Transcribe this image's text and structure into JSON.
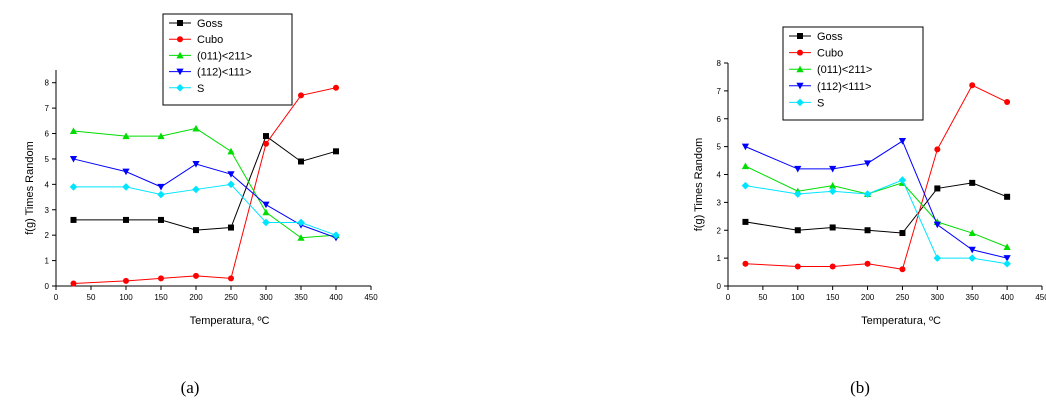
{
  "chart_data": [
    {
      "type": "line",
      "caption": "(a)",
      "xlabel": "Temperatura, ºC",
      "ylabel": "f(g) Times Random",
      "xlim": [
        0,
        450
      ],
      "ylim": [
        0,
        8.5
      ],
      "xticks": [
        0,
        50,
        100,
        150,
        200,
        250,
        300,
        350,
        400,
        450
      ],
      "yticks": [
        0,
        1,
        2,
        3,
        4,
        5,
        6,
        7,
        8
      ],
      "grid": false,
      "legend": "top-left",
      "x": [
        25,
        100,
        150,
        200,
        250,
        300,
        350,
        400
      ],
      "series": [
        {
          "name": "Goss",
          "color": "#000000",
          "marker": "square",
          "values": [
            2.6,
            2.6,
            2.6,
            2.2,
            2.3,
            5.9,
            4.9,
            5.3
          ]
        },
        {
          "name": "Cubo",
          "color": "#ff0000",
          "marker": "circle",
          "values": [
            0.1,
            0.2,
            0.3,
            0.4,
            0.3,
            5.6,
            7.5,
            7.8
          ]
        },
        {
          "name": "(011)<211>",
          "color": "#00dd00",
          "marker": "triangle-up",
          "values": [
            6.1,
            5.9,
            5.9,
            6.2,
            5.3,
            2.9,
            1.9,
            2.0
          ]
        },
        {
          "name": "(112)<111>",
          "color": "#0000ff",
          "marker": "triangle-down",
          "values": [
            5.0,
            4.5,
            3.9,
            4.8,
            4.4,
            3.2,
            2.4,
            1.9
          ]
        },
        {
          "name": "S",
          "color": "#00e5ff",
          "marker": "diamond",
          "values": [
            3.9,
            3.9,
            3.6,
            3.8,
            4.0,
            2.5,
            2.5,
            2.0
          ]
        }
      ]
    },
    {
      "type": "line",
      "caption": "(b)",
      "xlabel": "Temperatura, ºC",
      "ylabel": "f(g) Times Random",
      "xlim": [
        0,
        450
      ],
      "ylim": [
        0,
        8
      ],
      "xticks": [
        0,
        50,
        100,
        150,
        200,
        250,
        300,
        350,
        400,
        450
      ],
      "yticks": [
        0,
        1,
        2,
        3,
        4,
        5,
        6,
        7,
        8
      ],
      "grid": false,
      "legend": "top-left",
      "x": [
        25,
        100,
        150,
        200,
        250,
        300,
        350,
        400
      ],
      "series": [
        {
          "name": "Goss",
          "color": "#000000",
          "marker": "square",
          "values": [
            2.3,
            2.0,
            2.1,
            2.0,
            1.9,
            3.5,
            3.7,
            3.2
          ]
        },
        {
          "name": "Cubo",
          "color": "#ff0000",
          "marker": "circle",
          "values": [
            0.8,
            0.7,
            0.7,
            0.8,
            0.6,
            4.9,
            7.2,
            6.6
          ]
        },
        {
          "name": "(011)<211>",
          "color": "#00dd00",
          "marker": "triangle-up",
          "values": [
            4.3,
            3.4,
            3.6,
            3.3,
            3.7,
            2.3,
            1.9,
            1.4
          ]
        },
        {
          "name": "(112)<111>",
          "color": "#0000ff",
          "marker": "triangle-down",
          "values": [
            5.0,
            4.2,
            4.2,
            4.4,
            5.2,
            2.2,
            1.3,
            1.0
          ]
        },
        {
          "name": "S",
          "color": "#00e5ff",
          "marker": "diamond",
          "values": [
            3.6,
            3.3,
            3.4,
            3.3,
            3.8,
            1.0,
            1.0,
            0.8
          ]
        }
      ]
    }
  ]
}
